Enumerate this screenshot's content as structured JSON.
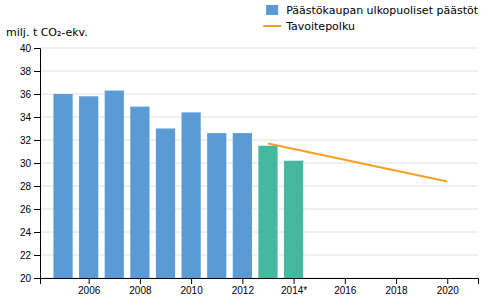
{
  "chart_data": {
    "type": "bar",
    "ylabel": "milj. t CO₂-ekv.",
    "series": [
      {
        "name": "Päästökaupan ulkopuoliset päästöt",
        "type": "bar",
        "x": [
          2005,
          2006,
          2007,
          2008,
          2009,
          2010,
          2011,
          2012,
          2013,
          2014
        ],
        "values": [
          36.0,
          35.8,
          36.3,
          34.9,
          33.0,
          34.4,
          32.6,
          32.6,
          31.5,
          30.2
        ],
        "colors": [
          "#5b9bd5",
          "#5b9bd5",
          "#5b9bd5",
          "#5b9bd5",
          "#5b9bd5",
          "#5b9bd5",
          "#5b9bd5",
          "#5b9bd5",
          "#45b8a0",
          "#45b8a0"
        ]
      },
      {
        "name": "Tavoitepolku",
        "type": "line",
        "color": "#f4a020",
        "x": [
          2013,
          2020
        ],
        "values": [
          31.7,
          28.4
        ]
      }
    ],
    "xlim": [
      2004.1,
      2021.2
    ],
    "xticks": [
      2006,
      2008,
      2010,
      2012,
      {
        "value": 2014,
        "label": "2014*"
      },
      2016,
      2018,
      2020
    ],
    "ylim": [
      20,
      40
    ],
    "yticks": [
      20,
      22,
      24,
      26,
      28,
      30,
      32,
      34,
      36,
      38,
      40
    ],
    "grid": true,
    "legend": "upper right"
  }
}
